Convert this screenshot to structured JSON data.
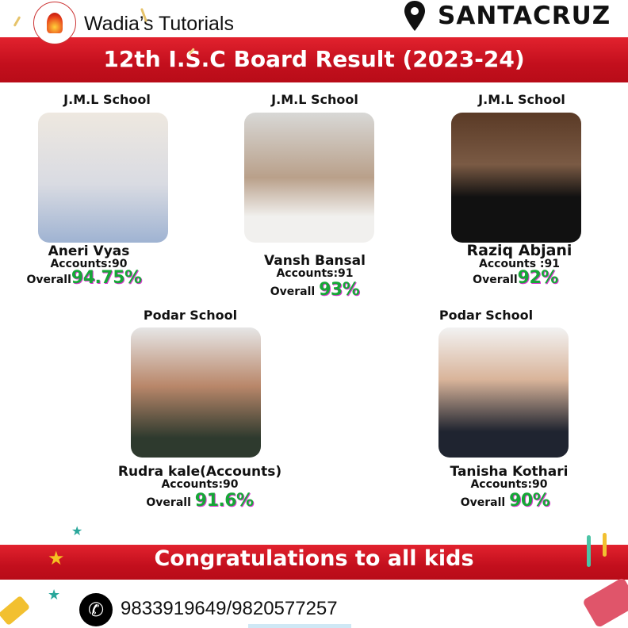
{
  "header": {
    "brand": "Wadia’s Tutorials",
    "logo_text": "WADIA'S TUTORIALS",
    "location": "SANTACRUZ",
    "title": "12th I.S.C Board Result (2023-24)"
  },
  "students": [
    {
      "school": "J.M.L School",
      "name": "Aneri Vyas",
      "accounts": "Accounts:90",
      "overall_label": "Overall",
      "overall": "94.75%"
    },
    {
      "school": "J.M.L School",
      "name": "Vansh Bansal",
      "accounts": "Accounts:91",
      "overall_label": "Overall",
      "overall": "93%"
    },
    {
      "school": "J.M.L School",
      "name": "Raziq Abjani",
      "accounts": "Accounts :91",
      "overall_label": "Overall",
      "overall": "92%"
    },
    {
      "school": "Podar School",
      "name": "Rudra kale(Accounts)",
      "accounts": "Accounts:90",
      "overall_label": "Overall",
      "overall": "91.6%"
    },
    {
      "school": "Podar School",
      "name": "Tanisha Kothari",
      "accounts": "Accounts:90",
      "overall_label": "Overall",
      "overall": "90%"
    }
  ],
  "footer": {
    "congrats": "Congratulations to all kids",
    "phone": "9833919649/9820577257",
    "phone_icon": "phone-icon"
  },
  "colors": {
    "red": "#c8121f",
    "green": "#16a637"
  }
}
